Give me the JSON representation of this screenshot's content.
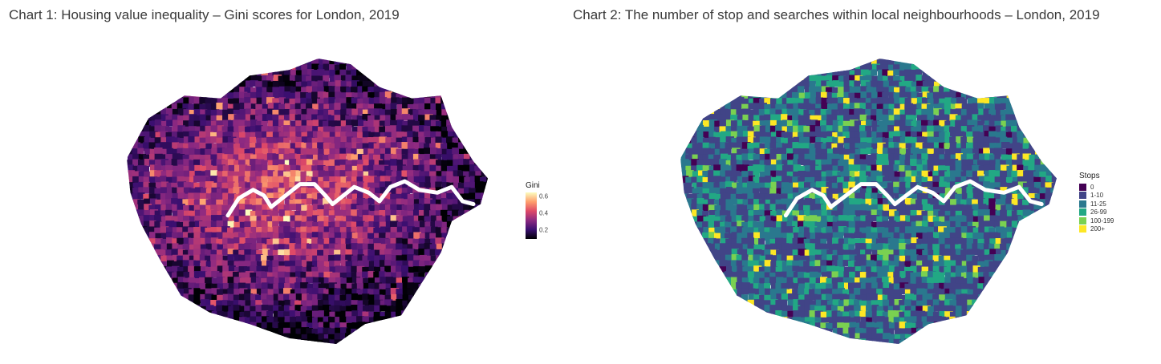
{
  "charts": [
    {
      "title": "Chart 1: Housing value inequality – Gini scores for London, 2019",
      "legend": {
        "title": "Gini",
        "ticks": [
          {
            "label": "0.6",
            "value": 0.6
          },
          {
            "label": "0.4",
            "value": 0.4
          },
          {
            "label": "0.2",
            "value": 0.2
          }
        ],
        "range": [
          0.1,
          0.65
        ],
        "palette": [
          "#000004",
          "#3b0f70",
          "#8c2981",
          "#de4968",
          "#fe9f6d",
          "#fcfdbf"
        ]
      }
    },
    {
      "title": "Chart 2: The number of stop and searches within local neighbourhoods – London, 2019",
      "legend": {
        "title": "Stops",
        "items": [
          {
            "label": "0",
            "color": "#440154"
          },
          {
            "label": "1-10",
            "color": "#414487"
          },
          {
            "label": "11-25",
            "color": "#2a788e"
          },
          {
            "label": "26-99",
            "color": "#22a884"
          },
          {
            "label": "100-199",
            "color": "#7ad151"
          },
          {
            "label": "200+",
            "color": "#fde725"
          }
        ]
      }
    }
  ]
}
